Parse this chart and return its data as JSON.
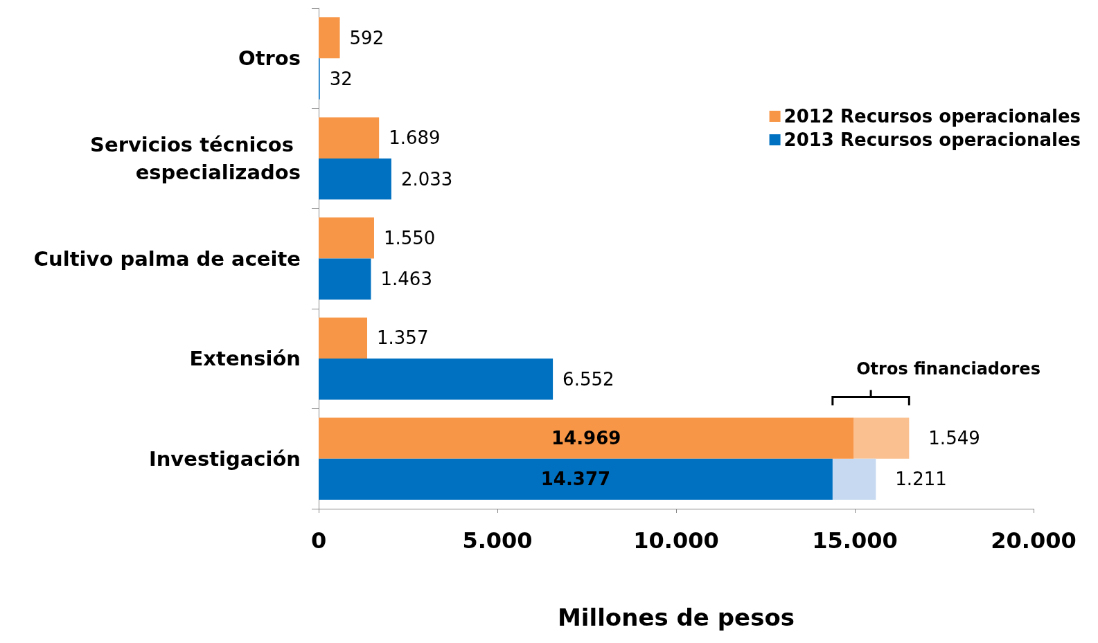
{
  "chart_data": {
    "type": "bar",
    "orientation": "horizontal",
    "categories": [
      "Otros",
      "Servicios técnicos especializados",
      "Cultivo palma de aceite",
      "Extensión",
      "Investigación"
    ],
    "series": [
      {
        "name": "2012 Recursos operacionales",
        "color": "#f79646",
        "values": [
          592,
          1689,
          1550,
          1357,
          14969
        ],
        "value_labels": [
          "592",
          "1.689",
          "1.550",
          "1.357",
          "14.969"
        ]
      },
      {
        "name": "2013 Recursos operacionales",
        "color": "#0070c0",
        "values": [
          32,
          2033,
          1463,
          6552,
          14377
        ],
        "value_labels": [
          "32",
          "2.033",
          "1.463",
          "6.552",
          "14.377"
        ]
      },
      {
        "color": "#fac08f",
        "base": [
          null,
          null,
          null,
          null,
          14969
        ],
        "values": [
          null,
          null,
          null,
          null,
          1549
        ],
        "value_labels": [
          null,
          null,
          null,
          null,
          "1.549"
        ]
      },
      {
        "color": "#c6d9f1",
        "base": [
          null,
          null,
          null,
          null,
          14377
        ],
        "values": [
          null,
          null,
          null,
          null,
          1211
        ],
        "value_labels": [
          null,
          null,
          null,
          null,
          "1.211"
        ]
      }
    ],
    "xlabel": "Millones de pesos",
    "xlim": [
      0,
      20000
    ],
    "xticks": [
      0,
      {
        "value": 5000,
        "label": "5.000"
      },
      {
        "value": 10000,
        "label": "10.000"
      },
      {
        "value": 15000,
        "label": "15.000"
      },
      {
        "value": 20000,
        "label": "20.000"
      }
    ],
    "annotations": [
      "Otros financiadores"
    ],
    "legend": "top right",
    "grid": false
  }
}
